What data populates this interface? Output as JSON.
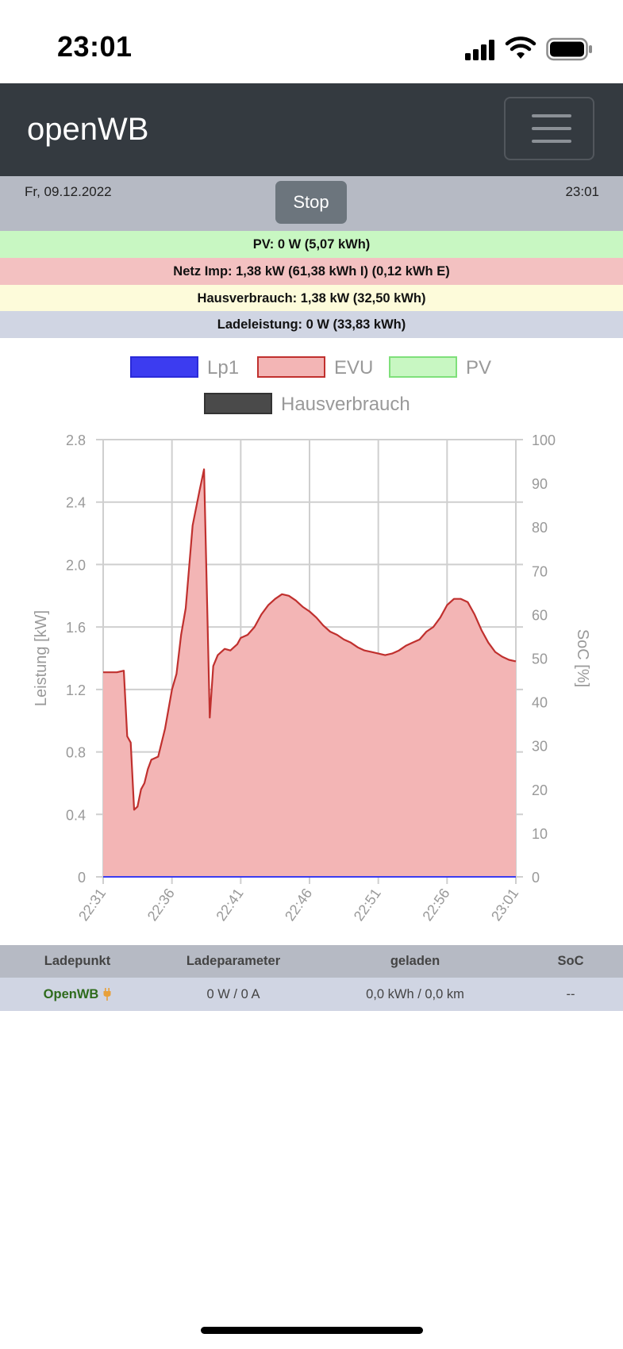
{
  "status_bar": {
    "time": "23:01",
    "signal_icon": "cellular-signal-icon",
    "wifi_icon": "wifi-icon",
    "battery_icon": "battery-icon"
  },
  "navbar": {
    "brand": "openWB",
    "menu_icon": "hamburger-menu-icon"
  },
  "info": {
    "date": "Fr, 09.12.2022",
    "time": "23:01",
    "stop_label": "Stop"
  },
  "summary": {
    "pv": "PV: 0 W (5,07 kWh)",
    "netz": "Netz Imp: 1,38 kW (61,38 kWh I) (0,12 kWh E)",
    "haus": "Hausverbrauch: 1,38 kW (32,50 kWh)",
    "lade": "Ladeleistung: 0 W (33,83 kWh)"
  },
  "colors": {
    "pv": "#c8f7c2",
    "netz": "#f3c1c1",
    "haus": "#fdfbda",
    "lade": "#d0d5e3",
    "navbar": "#343a40",
    "evu_line": "#c0302e",
    "evu_fill": "#f3b5b5",
    "lp1": "#3c3cf0",
    "hausverbrauch_legend": "#4a4a4a"
  },
  "chart_data": {
    "type": "area",
    "legend": [
      "Lp1",
      "EVU",
      "PV",
      "Hausverbrauch"
    ],
    "ylabel": "Leistung [kW]",
    "y2label": "SoC [%]",
    "ylim": [
      0,
      2.8
    ],
    "y2lim": [
      0,
      100
    ],
    "yticks": [
      "0",
      "0.4",
      "0.8",
      "1.2",
      "1.6",
      "2.0",
      "2.4",
      "2.8"
    ],
    "y2ticks": [
      "0",
      "10",
      "20",
      "30",
      "40",
      "50",
      "60",
      "70",
      "80",
      "90",
      "100"
    ],
    "xticks": [
      "22:31",
      "22:36",
      "22:41",
      "22:46",
      "22:51",
      "22:56",
      "23:01"
    ],
    "grid": true,
    "legend_position": "top",
    "series": [
      {
        "name": "EVU",
        "x": [
          "22:31",
          "22:32",
          "22:32:30",
          "22:32:45",
          "22:33",
          "22:33:15",
          "22:33:30",
          "22:33:45",
          "22:34",
          "22:34:15",
          "22:34:30",
          "22:35",
          "22:35:30",
          "22:36",
          "22:36:20",
          "22:36:40",
          "22:37",
          "22:37:30",
          "22:38",
          "22:38:20",
          "22:38:45",
          "22:39",
          "22:39:20",
          "22:39:50",
          "22:40:15",
          "22:40:45",
          "22:41",
          "22:41:30",
          "22:42",
          "22:42:30",
          "22:43",
          "22:43:30",
          "22:44",
          "22:44:30",
          "22:45",
          "22:45:30",
          "22:46",
          "22:46:30",
          "22:47",
          "22:47:30",
          "22:48",
          "22:48:30",
          "22:49",
          "22:49:30",
          "22:50",
          "22:50:30",
          "22:51",
          "22:51:30",
          "22:52",
          "22:52:30",
          "22:53",
          "22:53:30",
          "22:54",
          "22:54:30",
          "22:55",
          "22:55:30",
          "22:56",
          "22:56:30",
          "22:57",
          "22:57:30",
          "22:58",
          "22:58:30",
          "22:59",
          "22:59:30",
          "23:00",
          "23:00:30",
          "23:01"
        ],
        "values": [
          1.31,
          1.31,
          1.32,
          0.9,
          0.86,
          0.43,
          0.45,
          0.56,
          0.6,
          0.69,
          0.75,
          0.77,
          0.95,
          1.2,
          1.3,
          1.55,
          1.72,
          2.25,
          2.47,
          2.61,
          1.02,
          1.35,
          1.42,
          1.46,
          1.45,
          1.49,
          1.53,
          1.55,
          1.6,
          1.68,
          1.74,
          1.78,
          1.81,
          1.8,
          1.77,
          1.73,
          1.7,
          1.66,
          1.61,
          1.57,
          1.55,
          1.52,
          1.5,
          1.47,
          1.45,
          1.44,
          1.43,
          1.42,
          1.43,
          1.45,
          1.48,
          1.5,
          1.52,
          1.57,
          1.6,
          1.66,
          1.74,
          1.78,
          1.78,
          1.76,
          1.68,
          1.58,
          1.5,
          1.44,
          1.41,
          1.39,
          1.38
        ]
      },
      {
        "name": "Lp1",
        "values": [
          0,
          0
        ]
      },
      {
        "name": "PV",
        "values": []
      },
      {
        "name": "Hausverbrauch",
        "values": []
      }
    ]
  },
  "table": {
    "headers": [
      "Ladepunkt",
      "Ladeparameter",
      "geladen",
      "SoC"
    ],
    "rows": [
      {
        "ladepunkt": "OpenWB",
        "ladeparameter": "0 W / 0 A",
        "geladen": "0,0 kWh / 0,0 km",
        "soc": "--",
        "icon": "plug-icon"
      }
    ]
  }
}
